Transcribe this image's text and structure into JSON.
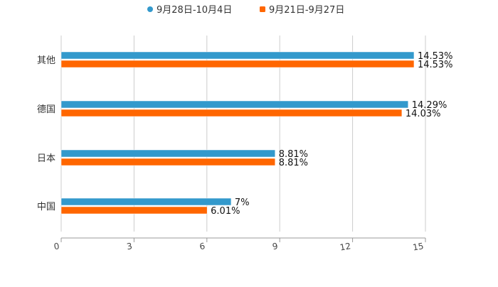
{
  "chart_data": {
    "type": "bar",
    "orientation": "horizontal",
    "title": "",
    "xlabel": "",
    "ylabel": "",
    "categories": [
      "其他",
      "德国",
      "日本",
      "中国"
    ],
    "series": [
      {
        "name": "9月28日-10月4日",
        "color": "#3399cc",
        "values": [
          14.53,
          14.29,
          8.81,
          7
        ],
        "labels": [
          "14.53%",
          "14.29%",
          "8.81%",
          "7%"
        ]
      },
      {
        "name": "9月21日-9月27日",
        "color": "#ff6600",
        "values": [
          14.53,
          14.03,
          8.81,
          6.01
        ],
        "labels": [
          "14.53%",
          "14.03%",
          "8.81%",
          "6.01%"
        ]
      }
    ],
    "xlim": [
      0,
      15
    ],
    "xticks": [
      "0",
      "3",
      "6",
      "9",
      "12",
      "15"
    ],
    "grid": true,
    "legend_position": "top-center"
  }
}
